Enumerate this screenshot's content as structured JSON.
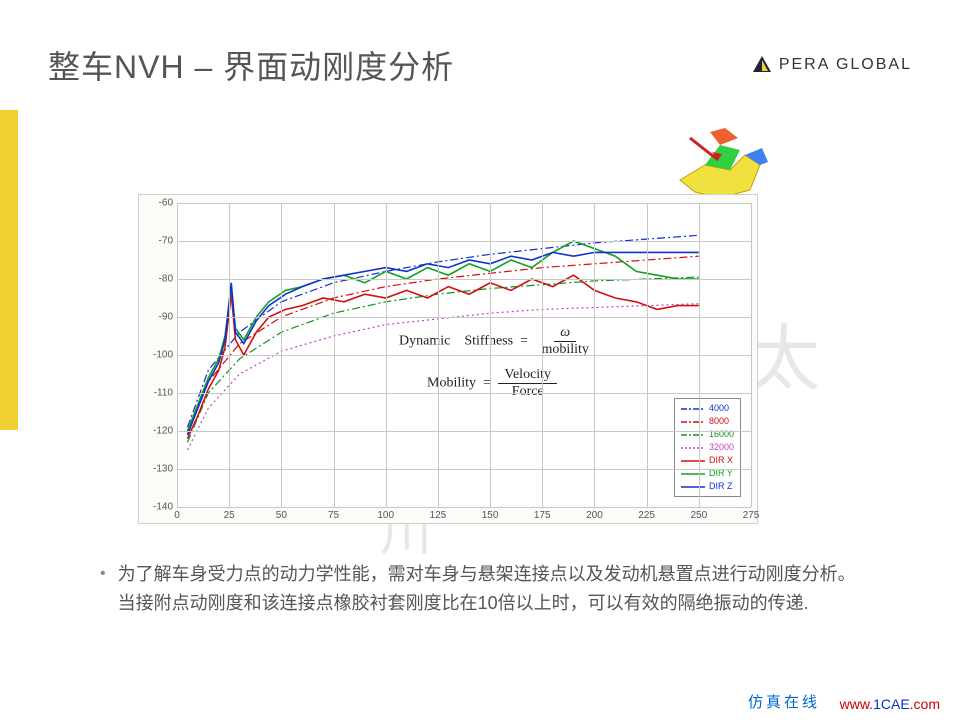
{
  "header": {
    "title": "整车NVH – 界面动刚度分析",
    "logo_text": "PERA GLOBAL"
  },
  "chart": {
    "type": "line",
    "background_color": "#fbfbf8",
    "plot_bg": "#ffffff",
    "grid_color": "#c8c8c8",
    "xlim": [
      0,
      275
    ],
    "ylim": [
      -140,
      -60
    ],
    "xticks": [
      0,
      25,
      50,
      75,
      100,
      125,
      150,
      175,
      200,
      225,
      250,
      275
    ],
    "yticks": [
      -140,
      -130,
      -120,
      -110,
      -100,
      -90,
      -80,
      -70,
      -60
    ],
    "tick_fontsize": 10,
    "tick_color": "#555555",
    "series": [
      {
        "name": "4000",
        "color": "#1030d0",
        "style": "dashdot",
        "width": 1.2,
        "data": [
          [
            5,
            -119
          ],
          [
            15,
            -104
          ],
          [
            30,
            -94
          ],
          [
            50,
            -86
          ],
          [
            75,
            -81
          ],
          [
            100,
            -78
          ],
          [
            125,
            -75.5
          ],
          [
            150,
            -73.5
          ],
          [
            175,
            -72
          ],
          [
            200,
            -70.5
          ],
          [
            225,
            -69.5
          ],
          [
            250,
            -68.5
          ]
        ]
      },
      {
        "name": "8000",
        "color": "#d01010",
        "style": "dashdot",
        "width": 1.2,
        "data": [
          [
            5,
            -121
          ],
          [
            15,
            -107
          ],
          [
            30,
            -97
          ],
          [
            50,
            -90
          ],
          [
            75,
            -85
          ],
          [
            100,
            -82
          ],
          [
            125,
            -80
          ],
          [
            150,
            -78.5
          ],
          [
            175,
            -77
          ],
          [
            200,
            -76
          ],
          [
            225,
            -75
          ],
          [
            250,
            -74
          ]
        ]
      },
      {
        "name": "16000",
        "color": "#109020",
        "style": "dashdot",
        "width": 1.2,
        "data": [
          [
            5,
            -123
          ],
          [
            15,
            -110
          ],
          [
            30,
            -101
          ],
          [
            50,
            -94
          ],
          [
            75,
            -89
          ],
          [
            100,
            -86
          ],
          [
            125,
            -84
          ],
          [
            150,
            -82.5
          ],
          [
            175,
            -81.5
          ],
          [
            200,
            -80.5
          ],
          [
            225,
            -80
          ],
          [
            250,
            -79.5
          ]
        ]
      },
      {
        "name": "32000",
        "color": "#c040c0",
        "style": "dot",
        "width": 1.2,
        "data": [
          [
            5,
            -125
          ],
          [
            15,
            -114
          ],
          [
            30,
            -105
          ],
          [
            50,
            -99
          ],
          [
            75,
            -95
          ],
          [
            100,
            -92
          ],
          [
            125,
            -90.5
          ],
          [
            150,
            -89
          ],
          [
            175,
            -88
          ],
          [
            200,
            -87.5
          ],
          [
            225,
            -87
          ],
          [
            250,
            -86.5
          ]
        ]
      },
      {
        "name": "DIR X",
        "color": "#d01010",
        "style": "solid",
        "width": 1.6,
        "data": [
          [
            5,
            -122
          ],
          [
            10,
            -116
          ],
          [
            15,
            -109
          ],
          [
            20,
            -104
          ],
          [
            23,
            -98
          ],
          [
            26,
            -84
          ],
          [
            28,
            -96
          ],
          [
            32,
            -100
          ],
          [
            38,
            -94
          ],
          [
            44,
            -90
          ],
          [
            52,
            -88
          ],
          [
            60,
            -87
          ],
          [
            70,
            -85
          ],
          [
            80,
            -86
          ],
          [
            90,
            -84
          ],
          [
            100,
            -85
          ],
          [
            110,
            -83
          ],
          [
            120,
            -85
          ],
          [
            130,
            -82
          ],
          [
            140,
            -84
          ],
          [
            150,
            -81
          ],
          [
            160,
            -83
          ],
          [
            170,
            -80
          ],
          [
            180,
            -82
          ],
          [
            190,
            -79
          ],
          [
            200,
            -83
          ],
          [
            210,
            -85
          ],
          [
            220,
            -86
          ],
          [
            230,
            -88
          ],
          [
            240,
            -87
          ],
          [
            250,
            -87
          ]
        ]
      },
      {
        "name": "DIR Y",
        "color": "#10a020",
        "style": "solid",
        "width": 1.6,
        "data": [
          [
            5,
            -120
          ],
          [
            10,
            -113
          ],
          [
            15,
            -106
          ],
          [
            20,
            -101
          ],
          [
            23,
            -95
          ],
          [
            26,
            -82
          ],
          [
            28,
            -93
          ],
          [
            32,
            -96
          ],
          [
            38,
            -90
          ],
          [
            44,
            -86
          ],
          [
            52,
            -83
          ],
          [
            60,
            -82
          ],
          [
            70,
            -80
          ],
          [
            80,
            -79
          ],
          [
            90,
            -81
          ],
          [
            100,
            -78
          ],
          [
            110,
            -80
          ],
          [
            120,
            -77
          ],
          [
            130,
            -79
          ],
          [
            140,
            -76
          ],
          [
            150,
            -78
          ],
          [
            160,
            -75
          ],
          [
            170,
            -77
          ],
          [
            180,
            -73
          ],
          [
            190,
            -70
          ],
          [
            200,
            -72
          ],
          [
            210,
            -74
          ],
          [
            220,
            -78
          ],
          [
            230,
            -79
          ],
          [
            240,
            -80
          ],
          [
            250,
            -80
          ]
        ]
      },
      {
        "name": "DIR Z",
        "color": "#1030d0",
        "style": "solid",
        "width": 1.6,
        "data": [
          [
            5,
            -121
          ],
          [
            10,
            -114
          ],
          [
            15,
            -107
          ],
          [
            20,
            -102
          ],
          [
            23,
            -96
          ],
          [
            26,
            -81
          ],
          [
            28,
            -94
          ],
          [
            32,
            -97
          ],
          [
            38,
            -91
          ],
          [
            44,
            -87
          ],
          [
            52,
            -84
          ],
          [
            60,
            -82
          ],
          [
            70,
            -80
          ],
          [
            80,
            -79
          ],
          [
            90,
            -78
          ],
          [
            100,
            -77
          ],
          [
            110,
            -78
          ],
          [
            120,
            -76
          ],
          [
            130,
            -77
          ],
          [
            140,
            -75
          ],
          [
            150,
            -76
          ],
          [
            160,
            -74
          ],
          [
            170,
            -75
          ],
          [
            180,
            -73
          ],
          [
            190,
            -74
          ],
          [
            200,
            -73
          ],
          [
            210,
            -73
          ],
          [
            220,
            -73
          ],
          [
            230,
            -73
          ],
          [
            240,
            -73
          ],
          [
            250,
            -73
          ]
        ]
      }
    ],
    "legend": {
      "position": "bottom-right",
      "border_color": "#888888",
      "bg": "#ffffff",
      "fontsize": 9,
      "items": [
        {
          "label": "4000",
          "color": "#1030d0",
          "style": "dashdot"
        },
        {
          "label": "8000",
          "color": "#d01010",
          "style": "dashdot"
        },
        {
          "label": "16000",
          "color": "#109020",
          "style": "dashdot"
        },
        {
          "label": "32000",
          "color": "#c040c0",
          "style": "dot"
        },
        {
          "label": "DIR X",
          "color": "#d01010",
          "style": "solid"
        },
        {
          "label": "DIR Y",
          "color": "#10a020",
          "style": "solid"
        },
        {
          "label": "DIR Z",
          "color": "#1030d0",
          "style": "solid"
        }
      ]
    },
    "formulas": {
      "f1_lhs": "Dynamic　Stiffness  =",
      "f1_num": "ω",
      "f1_den": "mobility",
      "f2_lhs": "Mobility  =",
      "f2_num": "Velocity",
      "f2_den": "Force"
    }
  },
  "body": {
    "bullet": "•",
    "text": "为了解车身受力点的动力学性能，需对车身与悬架连接点以及发动机悬置点进行动刚度分析。当接附点动刚度和该连接点橡胶衬套刚度比在10倍以上时，可以有效的隔绝振动的传递."
  },
  "footer": {
    "left": "仿真在线",
    "right_1": "www.",
    "right_2": "1CAE",
    "right_3": ".com"
  },
  "watermark": {
    "char1": "太",
    "char2": "川"
  }
}
